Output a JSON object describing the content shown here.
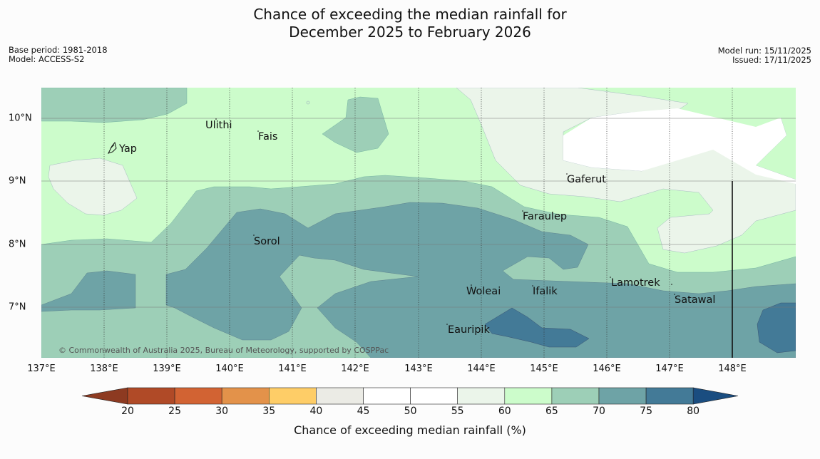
{
  "title": {
    "line1": "Chance of exceeding the median rainfall for",
    "line2": "December 2025 to February 2026"
  },
  "meta_left": {
    "base_period": "Base period: 1981-2018",
    "model": "Model: ACCESS-S2"
  },
  "meta_right": {
    "model_run": "Model run: 15/11/2025",
    "issued": "Issued: 17/11/2025"
  },
  "map": {
    "lon_labels": [
      "137°E",
      "138°E",
      "139°E",
      "140°E",
      "141°E",
      "142°E",
      "143°E",
      "144°E",
      "145°E",
      "146°E",
      "147°E",
      "148°E"
    ],
    "lat_labels": [
      "10°N",
      "9°N",
      "8°N",
      "7°N"
    ],
    "places": [
      "Ulithi",
      "Fais",
      "Yap",
      "Gaferut",
      "Faraulep",
      "Sorol",
      "Lamotrek",
      "Woleai",
      "Ifalik",
      "Satawal",
      "Eauripik"
    ],
    "copyright": "© Commonwealth of Australia 2025, Bureau of Meteorology, supported by COSPPac",
    "colors": {
      "c55_60": "#ebf5ea",
      "c60_65": "#ccfccb",
      "c65_70": "#9dcfb7",
      "c70_75": "#6ea3a6",
      "c75_80": "#437a97",
      "white": "#ffffff"
    }
  },
  "colorbar": {
    "ticks": [
      "20",
      "25",
      "30",
      "35",
      "40",
      "45",
      "50",
      "55",
      "60",
      "65",
      "70",
      "75",
      "80"
    ],
    "colors": [
      "#8d3a21",
      "#b04a27",
      "#d26333",
      "#e3924a",
      "#fecd67",
      "#ebebe5",
      "#ffffff",
      "#ffffff",
      "#ebf5ea",
      "#ccfccb",
      "#9dcfb7",
      "#6ea3a6",
      "#437a97",
      "#1a4d80"
    ],
    "label": "Chance of exceeding median rainfall (%)"
  }
}
